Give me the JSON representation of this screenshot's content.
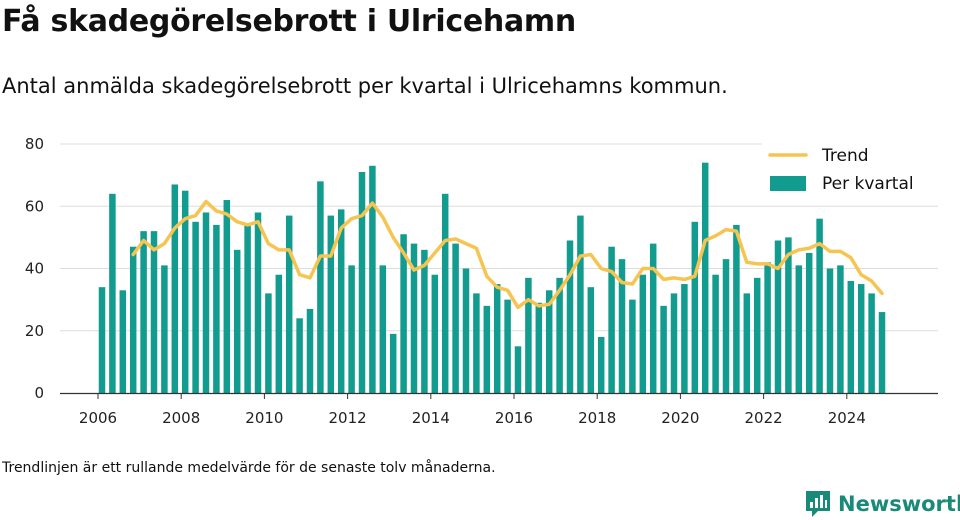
{
  "title": "Få skadegörelsebrott i Ulricehamn",
  "subtitle": "Antal anmälda skadegörelsebrott per kvartal i Ulricehamns kommun.",
  "footnote": "Trendlinjen är ett rullande medelvärde för de senaste tolv månaderna.",
  "brand": {
    "name": "Newsworthy",
    "icon": "bar-chart-logo-icon",
    "color": "#1a8a78"
  },
  "colors": {
    "bars": "#129b8f",
    "trend": "#f6c451",
    "grid": "#dddddd",
    "axis": "#333333"
  },
  "chart_data": {
    "type": "bar",
    "title": "",
    "xlabel": "",
    "ylabel": "",
    "ylim": [
      0,
      80
    ],
    "yticks": [
      0,
      20,
      40,
      60,
      80
    ],
    "xticks": [
      "2006",
      "2008",
      "2010",
      "2012",
      "2014",
      "2016",
      "2018",
      "2020",
      "2022",
      "2024"
    ],
    "grid": true,
    "legend_position": "top-right",
    "series": [
      {
        "name": "Per kvartal",
        "type": "bar",
        "x": [
          "2006 Q1",
          "2006 Q2",
          "2006 Q3",
          "2006 Q4",
          "2007 Q1",
          "2007 Q2",
          "2007 Q3",
          "2007 Q4",
          "2008 Q1",
          "2008 Q2",
          "2008 Q3",
          "2008 Q4",
          "2009 Q1",
          "2009 Q2",
          "2009 Q3",
          "2009 Q4",
          "2010 Q1",
          "2010 Q2",
          "2010 Q3",
          "2010 Q4",
          "2011 Q1",
          "2011 Q2",
          "2011 Q3",
          "2011 Q4",
          "2012 Q1",
          "2012 Q2",
          "2012 Q3",
          "2012 Q4",
          "2013 Q1",
          "2013 Q2",
          "2013 Q3",
          "2013 Q4",
          "2014 Q1",
          "2014 Q2",
          "2014 Q3",
          "2014 Q4",
          "2015 Q1",
          "2015 Q2",
          "2015 Q3",
          "2015 Q4",
          "2016 Q1",
          "2016 Q2",
          "2016 Q3",
          "2016 Q4",
          "2017 Q1",
          "2017 Q2",
          "2017 Q3",
          "2017 Q4",
          "2018 Q1",
          "2018 Q2",
          "2018 Q3",
          "2018 Q4",
          "2019 Q1",
          "2019 Q2",
          "2019 Q3",
          "2019 Q4",
          "2020 Q1",
          "2020 Q2",
          "2020 Q3",
          "2020 Q4",
          "2021 Q1",
          "2021 Q2",
          "2021 Q3",
          "2021 Q4",
          "2022 Q1",
          "2022 Q2",
          "2022 Q3",
          "2022 Q4",
          "2023 Q1",
          "2023 Q2",
          "2023 Q3",
          "2023 Q4",
          "2024 Q1",
          "2024 Q2",
          "2024 Q3",
          "2024 Q4"
        ],
        "values": [
          34,
          64,
          33,
          47,
          52,
          52,
          41,
          67,
          65,
          55,
          58,
          54,
          62,
          46,
          54,
          58,
          32,
          38,
          57,
          24,
          27,
          68,
          57,
          59,
          41,
          71,
          73,
          41,
          19,
          51,
          48,
          46,
          38,
          64,
          48,
          40,
          32,
          28,
          35,
          30,
          15,
          37,
          29,
          33,
          37,
          49,
          57,
          34,
          18,
          47,
          43,
          30,
          38,
          48,
          28,
          32,
          35,
          55,
          74,
          38,
          43,
          54,
          32,
          37,
          42,
          49,
          50,
          41,
          45,
          56,
          40,
          41,
          36,
          35,
          32,
          26
        ]
      },
      {
        "name": "Trend",
        "type": "line",
        "x": [
          "2006 Q4",
          "2007 Q1",
          "2007 Q2",
          "2007 Q3",
          "2007 Q4",
          "2008 Q1",
          "2008 Q2",
          "2008 Q3",
          "2008 Q4",
          "2009 Q1",
          "2009 Q2",
          "2009 Q3",
          "2009 Q4",
          "2010 Q1",
          "2010 Q2",
          "2010 Q3",
          "2010 Q4",
          "2011 Q1",
          "2011 Q2",
          "2011 Q3",
          "2011 Q4",
          "2012 Q1",
          "2012 Q2",
          "2012 Q3",
          "2012 Q4",
          "2013 Q1",
          "2013 Q2",
          "2013 Q3",
          "2013 Q4",
          "2014 Q1",
          "2014 Q2",
          "2014 Q3",
          "2014 Q4",
          "2015 Q1",
          "2015 Q2",
          "2015 Q3",
          "2015 Q4",
          "2016 Q1",
          "2016 Q2",
          "2016 Q3",
          "2016 Q4",
          "2017 Q1",
          "2017 Q2",
          "2017 Q3",
          "2017 Q4",
          "2018 Q1",
          "2018 Q2",
          "2018 Q3",
          "2018 Q4",
          "2019 Q1",
          "2019 Q2",
          "2019 Q3",
          "2019 Q4",
          "2020 Q1",
          "2020 Q2",
          "2020 Q3",
          "2020 Q4",
          "2021 Q1",
          "2021 Q2",
          "2021 Q3",
          "2021 Q4",
          "2022 Q1",
          "2022 Q2",
          "2022 Q3",
          "2022 Q4",
          "2023 Q1",
          "2023 Q2",
          "2023 Q3",
          "2023 Q4",
          "2024 Q1",
          "2024 Q2",
          "2024 Q3",
          "2024 Q4"
        ],
        "values": [
          44.5,
          49,
          46,
          48,
          53,
          56,
          57,
          61.5,
          58.5,
          57.5,
          55,
          54,
          55,
          48,
          46,
          46,
          38,
          37,
          44,
          44,
          53,
          56,
          57,
          61,
          56.5,
          50,
          45,
          39.5,
          41,
          45,
          49,
          49.5,
          48,
          46.5,
          37.5,
          34,
          33,
          27.5,
          30,
          28,
          28.5,
          33,
          38,
          44,
          44.5,
          40,
          39,
          35.5,
          35,
          40,
          40,
          36.5,
          37,
          36.5,
          37.5,
          49,
          50.5,
          52.5,
          52,
          42,
          41.5,
          41.5,
          40,
          44.5,
          46,
          46.5,
          48,
          45.5,
          45.5,
          43.5,
          38,
          36,
          32
        ]
      }
    ]
  }
}
